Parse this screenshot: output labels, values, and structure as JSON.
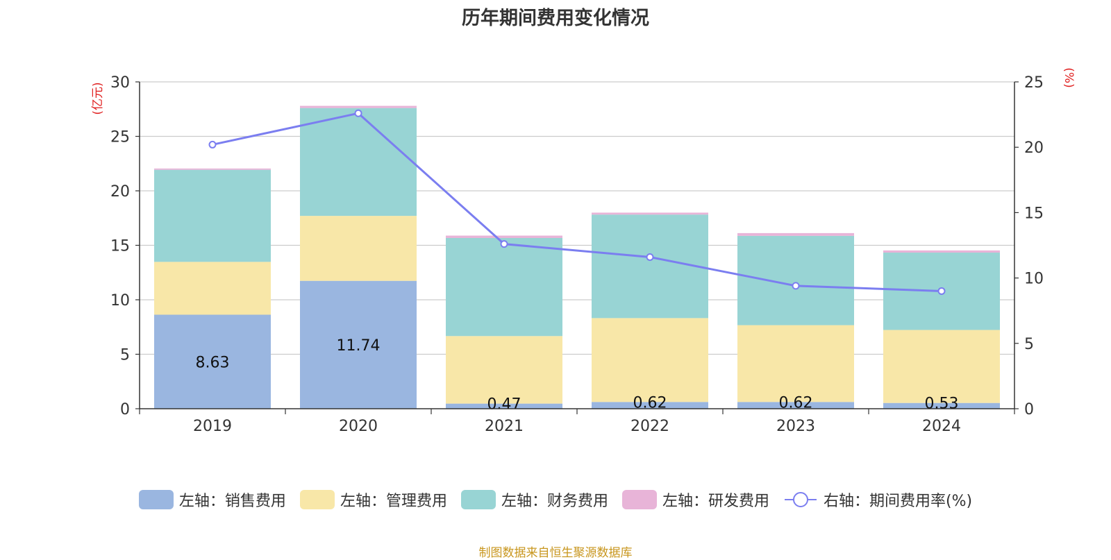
{
  "chart_data": {
    "type": "bar",
    "title": "历年期间费用变化情况",
    "categories": [
      "2019",
      "2020",
      "2021",
      "2022",
      "2023",
      "2024"
    ],
    "y_left": {
      "unit_label": "(亿元)",
      "ylim": [
        0,
        30
      ],
      "ticks": [
        0,
        5,
        10,
        15,
        20,
        25,
        30
      ]
    },
    "y_right": {
      "unit_label": "(%)",
      "ylim": [
        0,
        25
      ],
      "ticks": [
        0,
        5,
        10,
        15,
        20,
        25
      ]
    },
    "grid": true,
    "legend_position": "bottom",
    "series": [
      {
        "name": "左轴：销售费用",
        "type": "bar",
        "stack": "total",
        "axis": "left",
        "color": "#9ab6e0",
        "values": [
          8.63,
          11.74,
          0.47,
          0.62,
          0.62,
          0.53
        ],
        "labels": [
          "8.63",
          "11.74",
          "0.47",
          "0.62",
          "0.62",
          "0.53"
        ]
      },
      {
        "name": "左轴：管理费用",
        "type": "bar",
        "stack": "total",
        "axis": "left",
        "color": "#f8e7a8",
        "values": [
          4.85,
          5.96,
          6.2,
          7.7,
          7.05,
          6.7
        ]
      },
      {
        "name": "左轴：财务费用",
        "type": "bar",
        "stack": "total",
        "axis": "left",
        "color": "#98d4d4",
        "values": [
          8.45,
          9.9,
          9.0,
          9.5,
          8.2,
          7.1
        ]
      },
      {
        "name": "左轴：研发费用",
        "type": "bar",
        "stack": "total",
        "axis": "left",
        "color": "#e8b4d8",
        "values": [
          0.12,
          0.2,
          0.22,
          0.18,
          0.25,
          0.2
        ]
      },
      {
        "name": "右轴：期间费用率(%)",
        "type": "line",
        "axis": "right",
        "color": "#7b7ef0",
        "values": [
          20.2,
          22.6,
          12.6,
          11.6,
          9.4,
          9.0
        ]
      }
    ]
  },
  "source_note": "制图数据来自恒生聚源数据库"
}
